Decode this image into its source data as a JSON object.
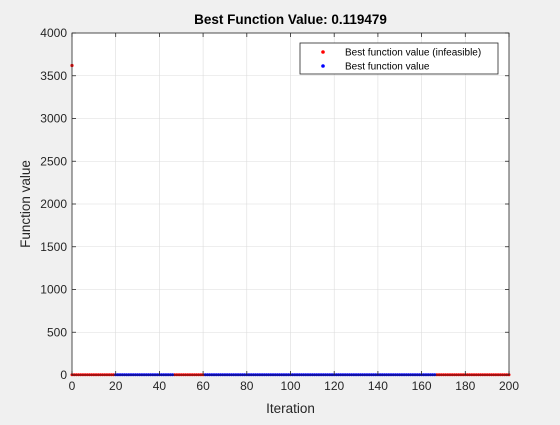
{
  "chart_data": {
    "type": "scatter",
    "title": "Best Function Value: 0.119479",
    "xlabel": "Iteration",
    "ylabel": "Function value",
    "xlim": [
      0,
      200
    ],
    "ylim": [
      0,
      4000
    ],
    "xticks": [
      0,
      20,
      40,
      60,
      80,
      100,
      120,
      140,
      160,
      180,
      200
    ],
    "yticks": [
      0,
      500,
      1000,
      1500,
      2000,
      2500,
      3000,
      3500,
      4000
    ],
    "grid": true,
    "legend_position": "top-right",
    "series": [
      {
        "name": "Best function value (infeasible)",
        "color": "#ff0000",
        "segments": [
          {
            "x_start": 0,
            "x_end": 19,
            "y": 3
          },
          {
            "x_start": 47,
            "x_end": 60,
            "y": 3
          },
          {
            "x_start": 167,
            "x_end": 200,
            "y": 3
          }
        ],
        "points": [
          {
            "x": 0,
            "y": 3620
          }
        ]
      },
      {
        "name": "Best function value",
        "color": "#0000ff",
        "segments": [
          {
            "x_start": 20,
            "x_end": 46,
            "y": 3
          },
          {
            "x_start": 61,
            "x_end": 166,
            "y": 3
          }
        ],
        "points": []
      }
    ]
  }
}
